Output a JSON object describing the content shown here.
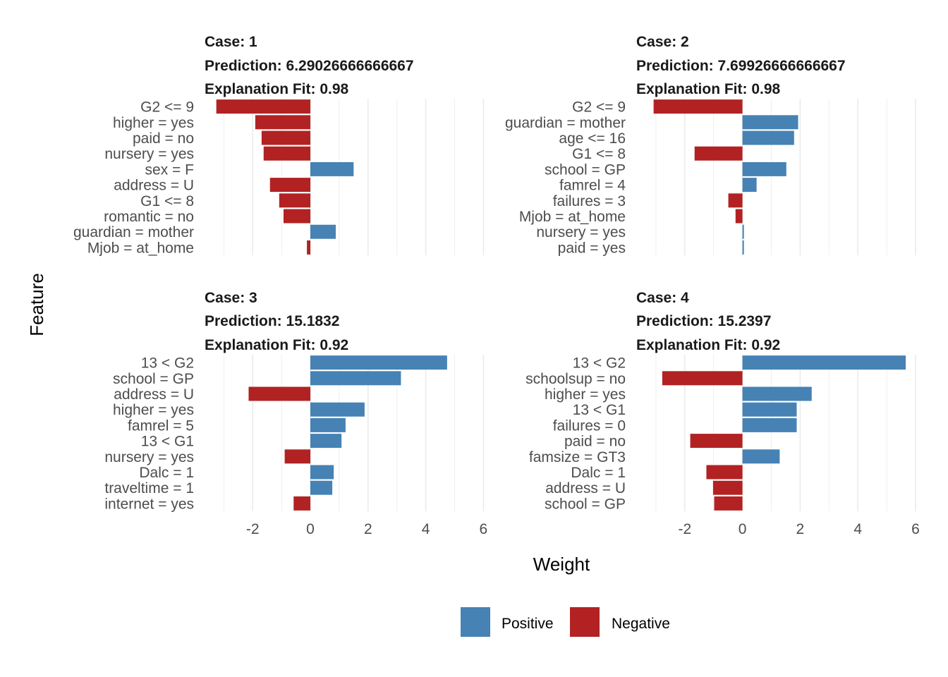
{
  "chart_data": {
    "type": "bar",
    "orientation": "horizontal",
    "xlabel": "Weight",
    "ylabel": "Feature",
    "xlim": [
      -3.5,
      6.3
    ],
    "xticks": [
      -2,
      0,
      2,
      4,
      6
    ],
    "xtick_labels": [
      "-2",
      "0",
      "2",
      "4",
      "6"
    ],
    "grid": true,
    "legend": {
      "placement": "bottom",
      "entries": [
        {
          "name": "Positive",
          "color": "#4682B4"
        },
        {
          "name": "Negative",
          "color": "#B22222"
        }
      ]
    },
    "panels": [
      {
        "case_label": "Case: 1",
        "prediction_label": "Prediction: 6.29026666666667",
        "fit_label": "Explanation Fit: 0.98",
        "features": [
          "G2 <= 9",
          "higher = yes",
          "paid = no",
          "nursery = yes",
          "sex = F",
          "address = U",
          "G1 <= 8",
          "romantic = no",
          "guardian = mother",
          "Mjob = at_home"
        ],
        "weights": [
          -3.26,
          -1.91,
          -1.69,
          -1.62,
          1.5,
          -1.4,
          -1.08,
          -0.93,
          0.88,
          -0.12
        ]
      },
      {
        "case_label": "Case: 2",
        "prediction_label": "Prediction: 7.69926666666667",
        "fit_label": "Explanation Fit: 0.98",
        "features": [
          "G2 <= 9",
          "guardian = mother",
          "age <= 16",
          "G1 <= 8",
          "school = GP",
          "famrel = 4",
          "failures = 3",
          "Mjob = at_home",
          "nursery = yes",
          "paid = yes"
        ],
        "weights": [
          -3.08,
          1.93,
          1.79,
          -1.66,
          1.52,
          0.49,
          -0.49,
          -0.24,
          0.05,
          0.05
        ]
      },
      {
        "case_label": "Case: 3",
        "prediction_label": "Prediction: 15.1832",
        "fit_label": "Explanation Fit: 0.92",
        "features": [
          "13 < G2",
          "school = GP",
          "address = U",
          "higher = yes",
          "famrel = 5",
          "13 < G1",
          "nursery = yes",
          "Dalc = 1",
          "traveltime = 1",
          "internet = yes"
        ],
        "weights": [
          4.74,
          3.14,
          -2.14,
          1.88,
          1.22,
          1.08,
          -0.89,
          0.81,
          0.76,
          -0.58
        ]
      },
      {
        "case_label": "Case: 4",
        "prediction_label": "Prediction: 15.2397",
        "fit_label": "Explanation Fit: 0.92",
        "features": [
          "13 < G2",
          "schoolsup = no",
          "higher = yes",
          "13 < G1",
          "failures = 0",
          "paid = no",
          "famsize = GT3",
          "Dalc = 1",
          "address = U",
          "school = GP"
        ],
        "weights": [
          5.66,
          -2.78,
          2.4,
          1.88,
          1.88,
          -1.81,
          1.29,
          -1.25,
          -1.02,
          -0.98
        ]
      }
    ]
  }
}
